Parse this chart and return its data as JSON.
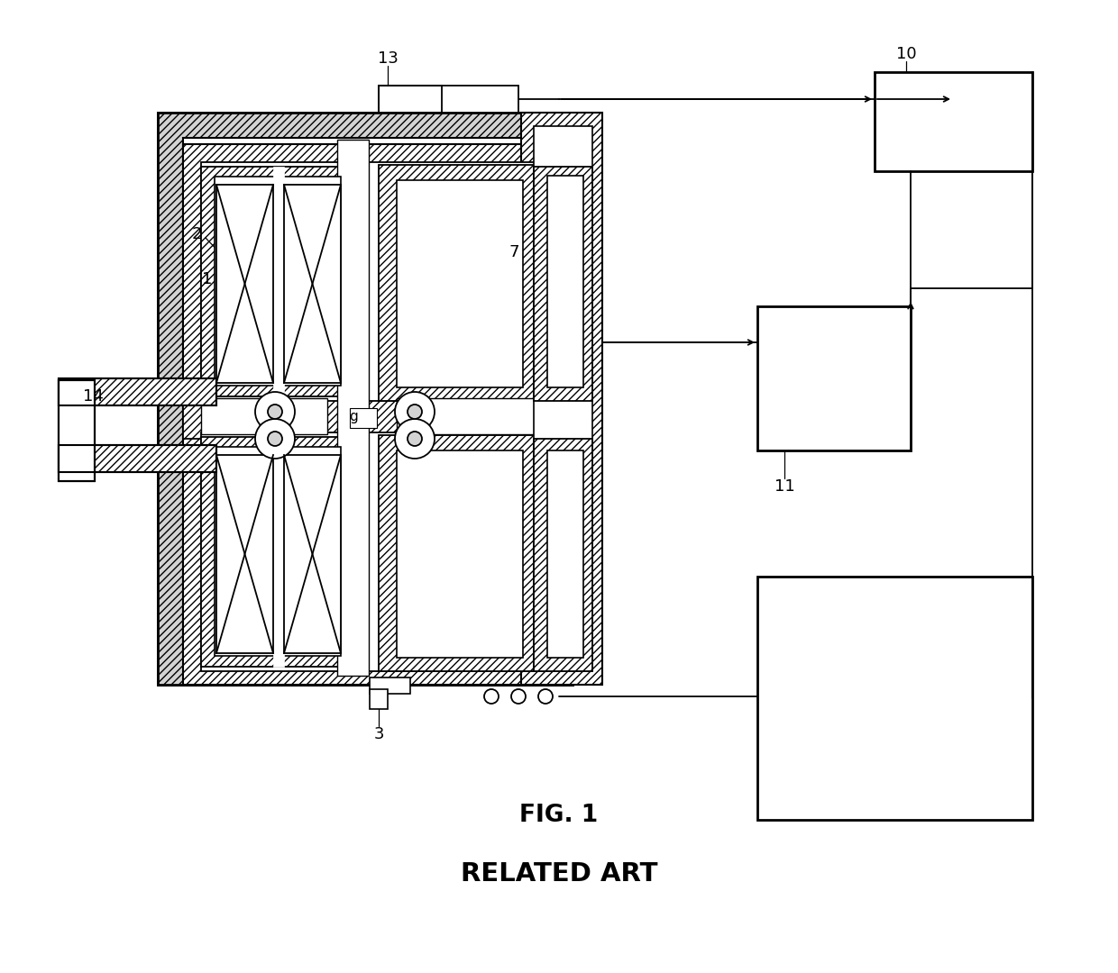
{
  "bg_color": "#ffffff",
  "line_color": "#1a1a1a",
  "fig1_label": "FIG. 1",
  "related_art_label": "RELATED ART",
  "label_fontsize": 13,
  "caption_fontsize": 19,
  "related_fontsize": 21
}
